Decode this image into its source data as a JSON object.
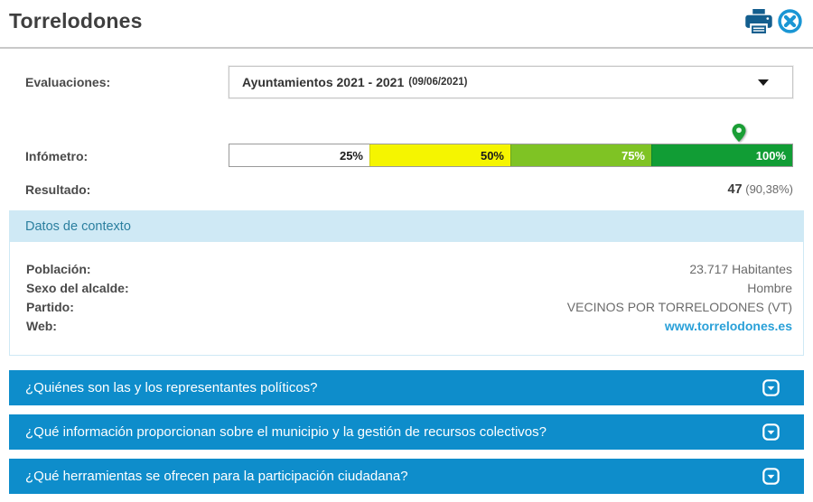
{
  "header": {
    "title": "Torrelodones",
    "print_icon": "print-icon",
    "close_icon": "close-icon"
  },
  "evaluaciones": {
    "label": "Evaluaciones:",
    "selected_main": "Ayuntamientos 2021 - 2021",
    "selected_date": "(09/06/2021)"
  },
  "infometro": {
    "label": "Infómetro:",
    "segments": [
      {
        "label": "25%",
        "color": "#ffffff",
        "text_color": "#1a1a1a"
      },
      {
        "label": "50%",
        "color": "#f5f500",
        "text_color": "#1a1a1a"
      },
      {
        "label": "75%",
        "color": "#7fc324",
        "text_color": "#ffffff"
      },
      {
        "label": "100%",
        "color": "#119d35",
        "text_color": "#ffffff"
      }
    ],
    "marker_percent": 90.38,
    "marker_color": "#1a9e35"
  },
  "resultado": {
    "label": "Resultado:",
    "value": "47",
    "percent": "(90,38%)"
  },
  "context": {
    "title": "Datos de contexto",
    "rows": [
      {
        "label": "Población:",
        "value": "23.717 Habitantes"
      },
      {
        "label": "Sexo del alcalde:",
        "value": "Hombre"
      },
      {
        "label": "Partido:",
        "value": "VECINOS POR TORRELODONES (VT)"
      },
      {
        "label": "Web:",
        "value": "www.torrelodones.es"
      }
    ]
  },
  "accordions": [
    {
      "label": "¿Quiénes son las y los representantes políticos?"
    },
    {
      "label": "¿Qué información proporcionan sobre el municipio y la gestión de recursos colectivos?"
    },
    {
      "label": "¿Qué herramientas se ofrecen para la participación ciudadana?"
    }
  ],
  "colors": {
    "accordion_blue": "#0e8dcb",
    "link_blue": "#29a0d8",
    "context_header_bg": "#cfe9f5",
    "context_header_text": "#2b7f9f",
    "print_icon_blue": "#135e8e",
    "close_icon_blue": "#1a96d4"
  }
}
